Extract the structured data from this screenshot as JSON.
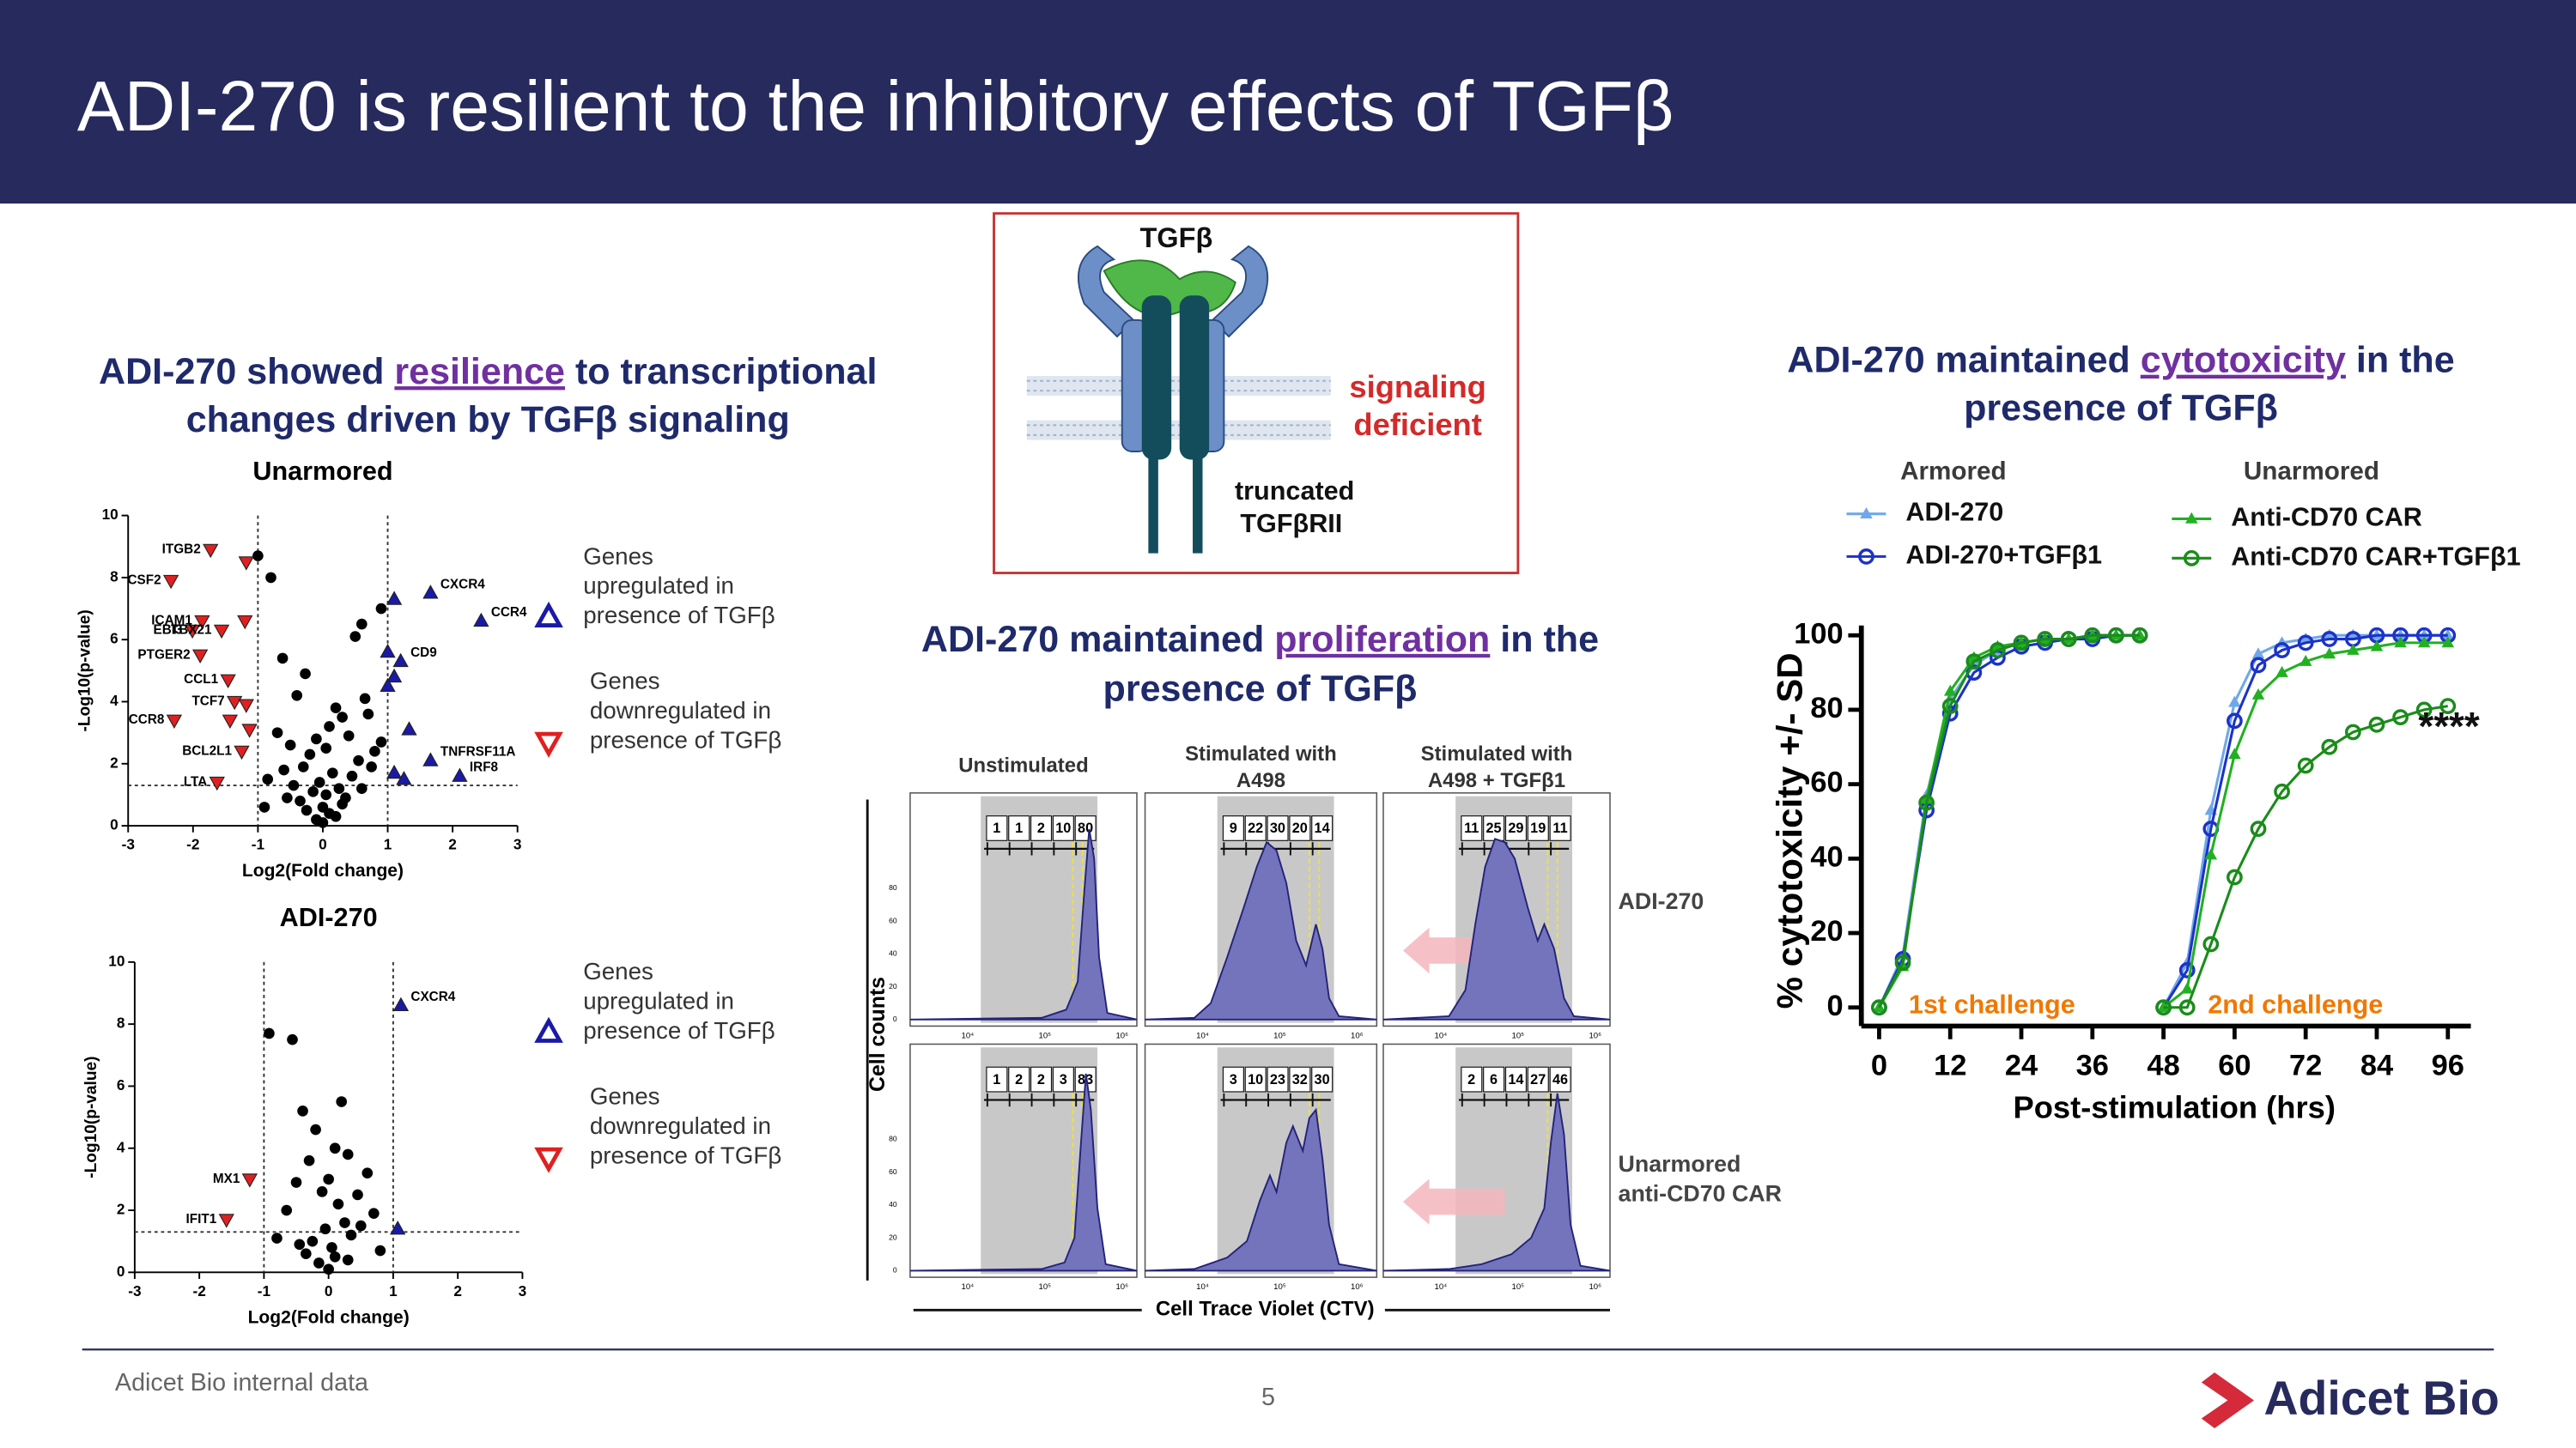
{
  "header": {
    "title": "ADI-270 is resilient to the inhibitory effects of TGFβ"
  },
  "diagram": {
    "ligand": "TGFβ",
    "note": [
      "signaling",
      "deficient"
    ],
    "receptor": [
      "truncated",
      "TGFβRII"
    ]
  },
  "transcription": {
    "heading": [
      [
        "ADI-270 showed ",
        "resilience",
        " to transcriptional"
      ],
      [
        "changes driven by TGFβ signaling"
      ]
    ]
  },
  "proliferation": {
    "heading": [
      [
        "ADI-270 maintained ",
        "proliferation",
        " in the"
      ],
      [
        "presence of TGFβ"
      ]
    ],
    "columns": [
      [
        "Unstimulated"
      ],
      [
        "Stimulated with",
        "A498"
      ],
      [
        "Stimulated with",
        "A498 + TGFβ1"
      ]
    ],
    "rows": [
      [
        "ADI-270"
      ],
      [
        "Unarmored",
        "anti-CD70 CAR"
      ]
    ],
    "gates": [
      [
        [
          1,
          1,
          2,
          10,
          80
        ],
        [
          9,
          22,
          30,
          20,
          14
        ],
        [
          11,
          25,
          29,
          19,
          11
        ]
      ],
      [
        [
          1,
          2,
          2,
          3,
          83
        ],
        [
          3,
          10,
          23,
          32,
          30
        ],
        [
          2,
          6,
          14,
          27,
          46
        ]
      ]
    ],
    "count_ticks": [
      0,
      20,
      40,
      60,
      80
    ],
    "ctv_ticks": [
      "10⁴",
      "10⁵",
      "10⁶"
    ],
    "y_label": "Cell counts",
    "x_label": "Cell Trace Violet (CTV)"
  },
  "cytotoxicity": {
    "heading": [
      [
        "ADI-270 maintained ",
        "cytotoxicity",
        " in the"
      ],
      [
        "presence of TGFβ"
      ]
    ]
  },
  "chart_data": [
    {
      "type": "scatter",
      "title": "Unarmored",
      "x_label": "Log2(Fold change)",
      "y_label": "-Log10(p-value)",
      "xlim": [
        -3,
        3
      ],
      "ylim": [
        0,
        10
      ],
      "xticks": [
        -3,
        -2,
        -1,
        0,
        1,
        2,
        3
      ],
      "yticks": [
        0,
        2,
        4,
        6,
        8,
        10
      ],
      "thresholds": {
        "x": [
          -1,
          1
        ],
        "y": 1.3
      },
      "legend": "right",
      "series": [
        {
          "name": "Genes upregulated in presence of TGFβ",
          "color": "#1a1aa6",
          "marker": "triangle-up",
          "x": [
            1.66,
            2.44,
            1.2,
            1.66,
            2.11,
            1.1,
            1.0,
            1.1,
            1.33,
            1.1,
            1.25,
            1.0
          ],
          "values": [
            7.5,
            6.6,
            5.3,
            2.1,
            1.6,
            7.3,
            5.6,
            4.8,
            3.1,
            1.7,
            1.5,
            4.5
          ],
          "labels": [
            "CXCR4",
            "CCR4",
            "CD9",
            "TNFRSF11A",
            "IRF8",
            null,
            null,
            null,
            null,
            null,
            null,
            null
          ]
        },
        {
          "name": "Genes downregulated in presence of TGFβ",
          "color": "#e02020",
          "marker": "triangle-down",
          "x": [
            -1.73,
            -2.34,
            -1.86,
            -2.01,
            -1.56,
            -1.89,
            -1.46,
            -1.36,
            -2.29,
            -1.25,
            -1.63,
            -1.18,
            -1.2,
            -1.43,
            -1.13,
            -1.18
          ],
          "values": [
            8.9,
            7.9,
            6.6,
            6.3,
            6.3,
            5.5,
            4.7,
            4.0,
            3.4,
            2.4,
            1.4,
            8.5,
            6.6,
            3.4,
            3.1,
            3.9
          ],
          "labels": [
            "ITGB2",
            "CSF2",
            "ICAM1",
            "EBI3",
            "TBX21",
            "PTGER2",
            "CCL1",
            "TCF7",
            "CCR8",
            "BCL2L1",
            "LTA",
            null,
            null,
            null,
            null,
            null
          ]
        },
        {
          "color": "#000000",
          "marker": "circle",
          "x": [
            -1.0,
            -0.8,
            0.5,
            0.6,
            0.9,
            -0.62,
            -0.27,
            0.2,
            -0.4,
            0.1,
            0.3,
            -0.1,
            0.05,
            -0.2,
            0.4,
            0.7,
            -0.5,
            -0.3,
            0.15,
            -0.05,
            0.25,
            -0.15,
            0.35,
            -0.6,
            0.55,
            0.8,
            -0.7,
            0.65,
            -0.35,
            0.45,
            0.0,
            -0.45,
            0.1,
            -0.25,
            0.3,
            0.2,
            -0.1,
            -0.55,
            0.6,
            0.75,
            -0.85,
            0.9,
            -0.9,
            0.05,
            0.0
          ],
          "values": [
            8.7,
            8.0,
            6.1,
            6.5,
            7.0,
            5.4,
            4.9,
            3.8,
            4.2,
            3.2,
            3.5,
            2.8,
            2.5,
            2.3,
            2.9,
            3.6,
            2.6,
            1.9,
            1.7,
            1.4,
            1.2,
            1.1,
            0.9,
            1.8,
            2.1,
            2.4,
            3.0,
            4.1,
            0.8,
            1.6,
            0.6,
            1.3,
            0.4,
            0.5,
            0.7,
            0.3,
            0.2,
            0.9,
            1.2,
            1.9,
            1.5,
            2.7,
            0.6,
            1.0,
            0.1
          ]
        }
      ]
    },
    {
      "type": "scatter",
      "title": "ADI-270",
      "x_label": "Log2(Fold change)",
      "y_label": "-Log10(p-value)",
      "xlim": [
        -3,
        3
      ],
      "ylim": [
        0,
        10
      ],
      "xticks": [
        -3,
        -2,
        -1,
        0,
        1,
        2,
        3
      ],
      "yticks": [
        0,
        2,
        4,
        6,
        8,
        10
      ],
      "thresholds": {
        "x": [
          -1,
          1
        ],
        "y": 1.3
      },
      "legend": "right",
      "series": [
        {
          "name": "Genes upregulated in presence of TGFβ",
          "color": "#1a1aa6",
          "marker": "triangle-up",
          "x": [
            1.12,
            1.07
          ],
          "values": [
            8.6,
            1.4
          ],
          "labels": [
            "CXCR4",
            null
          ]
        },
        {
          "name": "Genes downregulated in presence of TGFβ",
          "color": "#e02020",
          "marker": "triangle-down",
          "x": [
            -1.22,
            -1.58
          ],
          "values": [
            3.0,
            1.7
          ],
          "labels": [
            "MX1",
            "IFIT1"
          ]
        },
        {
          "color": "#000000",
          "marker": "circle",
          "x": [
            -0.92,
            -0.56,
            -0.4,
            0.2,
            -0.2,
            0.1,
            -0.3,
            0.3,
            0.0,
            -0.1,
            0.15,
            -0.5,
            0.45,
            0.6,
            -0.65,
            0.25,
            -0.05,
            0.35,
            -0.25,
            0.05,
            0.5,
            -0.45,
            0.7,
            -0.8,
            0.8,
            0.1,
            -0.15,
            0.0,
            0.3,
            -0.35
          ],
          "values": [
            7.7,
            7.5,
            5.2,
            5.5,
            4.6,
            4.0,
            3.6,
            3.8,
            3.0,
            2.6,
            2.2,
            2.9,
            2.5,
            3.2,
            2.0,
            1.6,
            1.4,
            1.2,
            1.0,
            0.8,
            1.5,
            0.9,
            1.9,
            1.1,
            0.7,
            0.5,
            0.3,
            0.1,
            0.4,
            0.6
          ]
        }
      ]
    },
    {
      "type": "line",
      "x_label": "Post-stimulation (hrs)",
      "y_label": "% cytotoxicity +/- SD",
      "xlim": [
        -3,
        96
      ],
      "ylim": [
        -5,
        100
      ],
      "xticks": [
        0,
        12,
        24,
        36,
        48,
        60,
        72,
        84,
        96
      ],
      "yticks": [
        0,
        20,
        40,
        60,
        80,
        100
      ],
      "legend_groups": [
        "Armored",
        "Unarmored"
      ],
      "annotations": [
        "1st challenge",
        "2nd challenge",
        "****"
      ],
      "annotation_color": "#f07800",
      "x": [
        0,
        4,
        8,
        12,
        16,
        20,
        24,
        28,
        32,
        36,
        40,
        44,
        null,
        48,
        52,
        56,
        60,
        64,
        68,
        72,
        76,
        80,
        84,
        88,
        92,
        96
      ],
      "series": [
        {
          "name": "ADI-270",
          "group": 0,
          "color": "#6fa8e8",
          "marker": "triangle",
          "values": [
            0,
            14,
            57,
            83,
            92,
            96,
            98,
            99,
            99,
            100,
            100,
            100,
            null,
            0,
            12,
            53,
            82,
            95,
            98,
            99,
            100,
            100,
            100,
            100,
            100,
            100
          ]
        },
        {
          "name": "ADI-270+TGFβ1",
          "group": 0,
          "color": "#1c32c8",
          "marker": "circle-open",
          "values": [
            0,
            13,
            53,
            79,
            90,
            94,
            97,
            98,
            99,
            99,
            100,
            100,
            null,
            0,
            10,
            48,
            77,
            92,
            96,
            98,
            99,
            99,
            100,
            100,
            100,
            100
          ]
        },
        {
          "name": "Anti-CD70 CAR",
          "group": 1,
          "color": "#22b022",
          "marker": "triangle",
          "values": [
            0,
            11,
            56,
            85,
            94,
            97,
            98,
            99,
            99,
            100,
            100,
            100,
            null,
            0,
            5,
            41,
            68,
            84,
            90,
            93,
            95,
            96,
            97,
            98,
            98,
            98
          ]
        },
        {
          "name": "Anti-CD70 CAR+TGFβ1",
          "group": 1,
          "color": "#1a8c1a",
          "marker": "circle-open",
          "values": [
            0,
            12,
            55,
            81,
            93,
            96,
            98,
            99,
            99,
            100,
            100,
            100,
            null,
            0,
            0,
            17,
            35,
            48,
            58,
            65,
            70,
            74,
            76,
            78,
            80,
            81
          ]
        }
      ]
    }
  ],
  "footer": {
    "source": "Adicet Bio internal data",
    "page": 5,
    "logo": "Adicet Bio"
  }
}
